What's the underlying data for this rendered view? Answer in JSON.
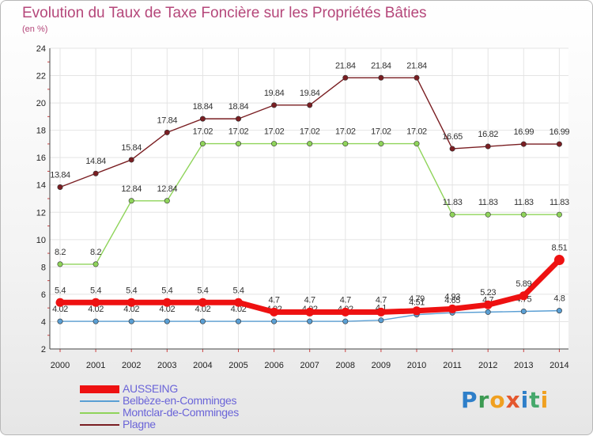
{
  "chart_data": {
    "type": "line",
    "title": "Evolution du Taux de Taxe Foncière sur les Propriétés Bâties",
    "ylabel": "(en %)",
    "xlabel": "",
    "x": [
      "2000",
      "2001",
      "2002",
      "2003",
      "2004",
      "2005",
      "2006",
      "2007",
      "2008",
      "2009",
      "2010",
      "2011",
      "2012",
      "2013",
      "2014"
    ],
    "ylim": [
      2,
      24
    ],
    "yticks": [
      "2",
      "4",
      "6",
      "8",
      "10",
      "12",
      "14",
      "16",
      "18",
      "20",
      "22",
      "24"
    ],
    "grid": true,
    "legend_position": "bottom-left",
    "series": [
      {
        "name": "AUSSEING",
        "color": "#ee1111",
        "values": [
          5.4,
          5.4,
          5.4,
          5.4,
          5.4,
          5.4,
          4.7,
          4.7,
          4.7,
          4.7,
          4.79,
          4.93,
          5.23,
          5.89,
          8.51
        ],
        "labels": [
          "5.4",
          "5.4",
          "5.4",
          "5.4",
          "5.4",
          "5.4",
          "4.7",
          "4.7",
          "4.7",
          "4.7",
          "4.79",
          "4.93",
          "5.23",
          "5.89",
          "8.51"
        ]
      },
      {
        "name": "Belbèze-en-Comminges",
        "color": "#5a9fd4",
        "values": [
          4.02,
          4.02,
          4.02,
          4.02,
          4.02,
          4.02,
          4.02,
          4.02,
          4.02,
          4.1,
          4.51,
          4.65,
          4.7,
          4.75,
          4.8
        ],
        "labels": [
          "4.02",
          "4.02",
          "4.02",
          "4.02",
          "4.02",
          "4.02",
          "4.02",
          "4.02",
          "4.02",
          "4.1",
          "4.51",
          "4.65",
          "4.7",
          "4.75",
          "4.8"
        ]
      },
      {
        "name": "Montclar-de-Comminges",
        "color": "#8fd45a",
        "values": [
          8.2,
          8.2,
          12.84,
          12.84,
          17.02,
          17.02,
          17.02,
          17.02,
          17.02,
          17.02,
          17.02,
          11.83,
          11.83,
          11.83,
          11.83
        ],
        "labels": [
          "8.2",
          "8.2",
          "12.84",
          "12.84",
          "17.02",
          "17.02",
          "17.02",
          "17.02",
          "17.02",
          "17.02",
          "17.02",
          "11.83",
          "11.83",
          "11.83",
          "11.83"
        ]
      },
      {
        "name": "Plagne",
        "color": "#7a1e22",
        "values": [
          13.84,
          14.84,
          15.84,
          17.84,
          18.84,
          18.84,
          19.84,
          19.84,
          21.84,
          21.84,
          21.84,
          16.65,
          16.82,
          16.99,
          16.99
        ],
        "labels": [
          "13.84",
          "14.84",
          "15.84",
          "17.84",
          "18.84",
          "18.84",
          "19.84",
          "19.84",
          "21.84",
          "21.84",
          "21.84",
          "16.65",
          "16.82",
          "16.99",
          "16.99"
        ]
      }
    ]
  },
  "logo": {
    "text_p": "P",
    "text_r": "r",
    "text_o": "o",
    "text_x": "x",
    "text_i": "i",
    "text_t": "t",
    "text_i2": "i"
  }
}
